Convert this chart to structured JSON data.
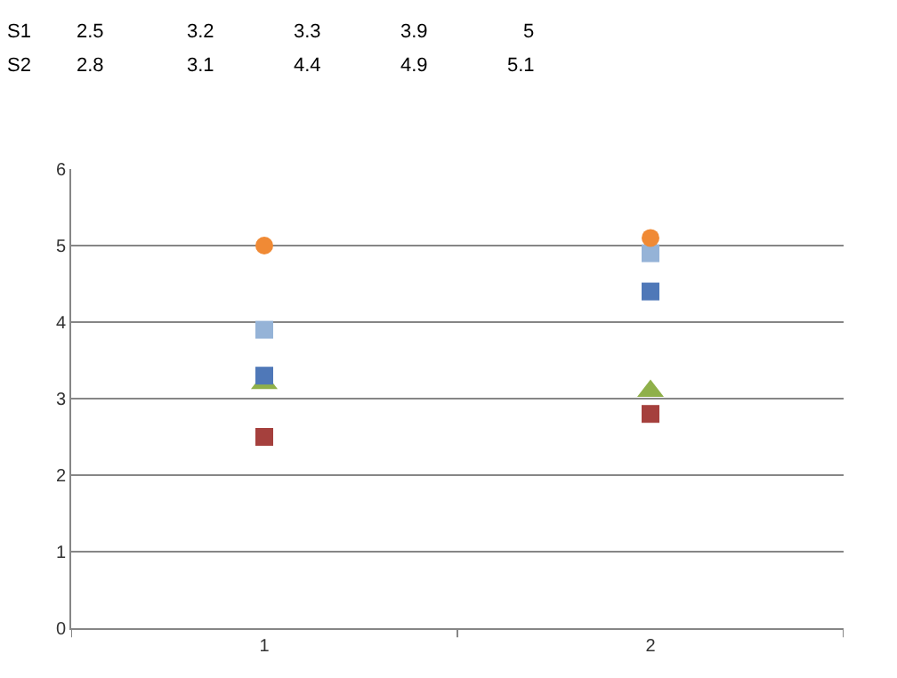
{
  "chart_data": [
    {
      "type": "other",
      "annotations": [
        "S1",
        "2.5",
        "3.2",
        "3.3",
        "3.9",
        "5",
        "S2",
        "2.8",
        "3.1",
        "4.4",
        "4.9",
        "5.1"
      ]
    },
    {
      "type": "scatter",
      "categories": [
        "1",
        "2"
      ],
      "series": [
        {
          "color": "#a5403d",
          "marker": "square",
          "values": [
            2.5,
            2.8
          ]
        },
        {
          "color": "#8fb04a",
          "marker": "triangle",
          "values": [
            3.2,
            3.1
          ]
        },
        {
          "color": "#4f78b8",
          "marker": "square",
          "values": [
            3.3,
            4.4
          ]
        },
        {
          "color": "#95b3d7",
          "marker": "square",
          "values": [
            3.9,
            4.9
          ]
        },
        {
          "color": "#f08a35",
          "marker": "circle",
          "values": [
            5,
            5.1
          ]
        }
      ],
      "ylim": [
        0,
        6
      ],
      "yticks": [
        0,
        1,
        2,
        3,
        4,
        5,
        6
      ],
      "grid": "y"
    }
  ]
}
